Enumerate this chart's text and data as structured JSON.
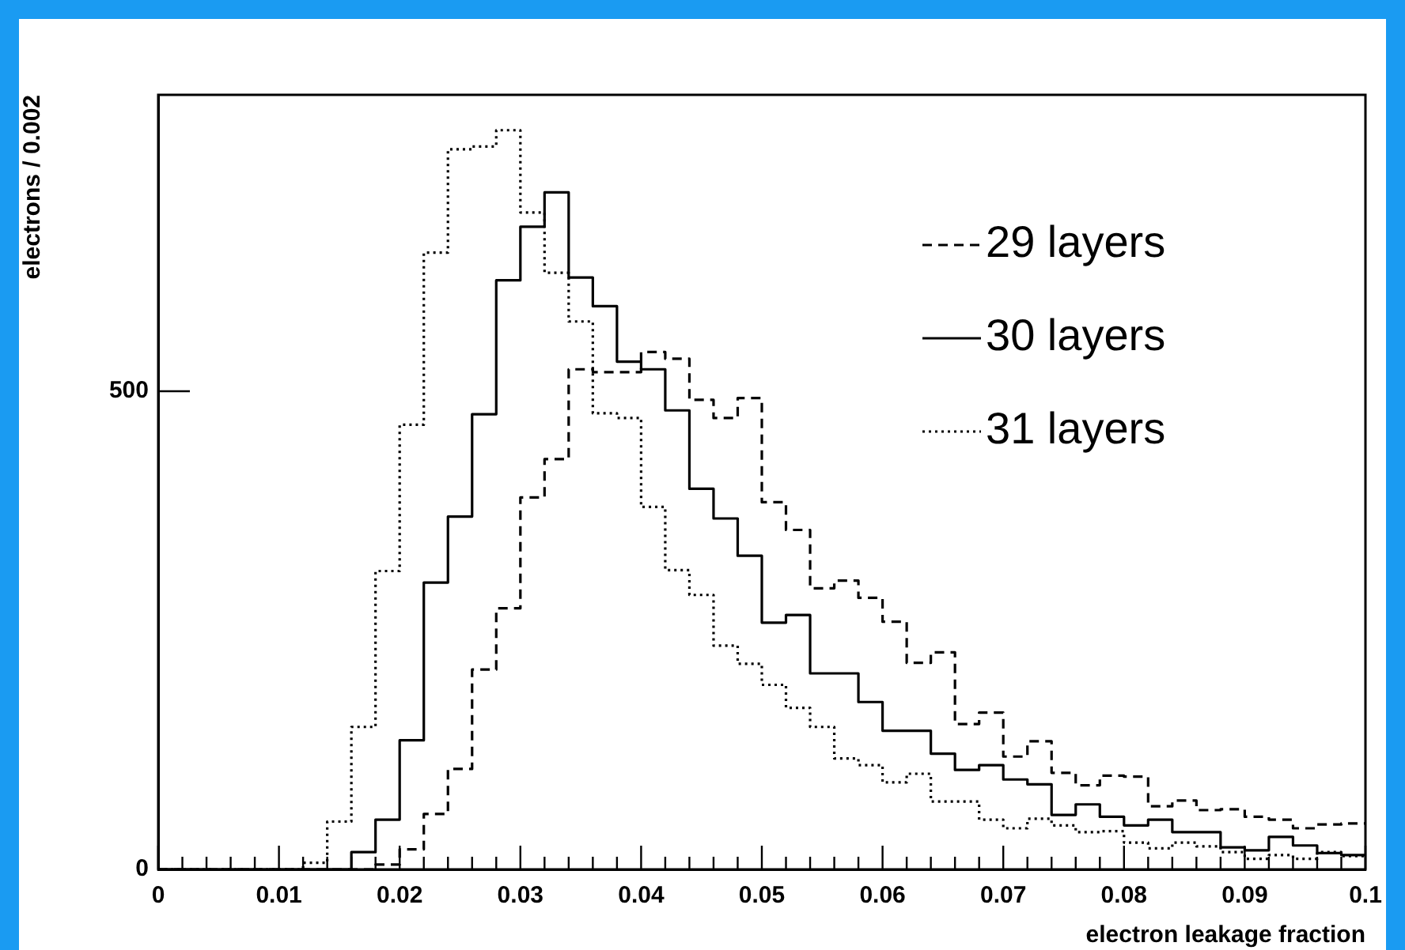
{
  "chart_data": {
    "type": "histogram",
    "xlabel": "electron leakage fraction",
    "ylabel": "electrons / 0.002",
    "bins": [
      0,
      0.002,
      0.004,
      0.006,
      0.008,
      0.01,
      0.012,
      0.014,
      0.016,
      0.018,
      0.02,
      0.022,
      0.024,
      0.026,
      0.028,
      0.03,
      0.032,
      0.034,
      0.036,
      0.038,
      0.04,
      0.042,
      0.044,
      0.046,
      0.048,
      0.05,
      0.052,
      0.054,
      0.056,
      0.058,
      0.06,
      0.062,
      0.064,
      0.066,
      0.068,
      0.07,
      0.072,
      0.074,
      0.076,
      0.078,
      0.08,
      0.082,
      0.084,
      0.086,
      0.088,
      0.09,
      0.092,
      0.094,
      0.096,
      0.098,
      0.1
    ],
    "series": [
      {
        "name": "29 layers",
        "color": "#000000",
        "line_style": "dashed",
        "values": [
          0,
          0,
          0,
          0,
          0,
          0,
          0,
          0,
          0,
          5,
          21,
          58,
          105,
          209,
          273,
          389,
          429,
          523,
          520,
          520,
          541,
          534,
          491,
          472,
          493,
          384,
          355,
          294,
          302,
          284,
          259,
          216,
          227,
          152,
          164,
          118,
          134,
          101,
          88,
          98,
          97,
          66,
          72,
          62,
          63,
          55,
          52,
          43,
          47,
          48
        ]
      },
      {
        "name": "30 layers",
        "color": "#000000",
        "line_style": "solid",
        "values": [
          0,
          0,
          0,
          0,
          0,
          0,
          0,
          0,
          18,
          52,
          135,
          300,
          369,
          476,
          616,
          672,
          708,
          619,
          589,
          531,
          523,
          480,
          398,
          367,
          328,
          258,
          266,
          205,
          205,
          175,
          145,
          145,
          121,
          104,
          109,
          94,
          89,
          57,
          68,
          55,
          46,
          52,
          39,
          39,
          23,
          20,
          34,
          25,
          17,
          15
        ]
      },
      {
        "name": "31 layers",
        "color": "#000000",
        "line_style": "dotted",
        "values": [
          0,
          0,
          0,
          0,
          0,
          0,
          7,
          50,
          149,
          312,
          465,
          645,
          753,
          756,
          773,
          687,
          624,
          573,
          477,
          472,
          379,
          313,
          287,
          234,
          215,
          193,
          169,
          149,
          116,
          109,
          91,
          100,
          71,
          71,
          52,
          43,
          53,
          46,
          39,
          40,
          28,
          22,
          28,
          24,
          18,
          11,
          15,
          11,
          18,
          14
        ]
      }
    ],
    "xlim": [
      0,
      0.1
    ],
    "ylim": [
      0,
      810
    ],
    "xticks": [
      0,
      {
        "value": 0.002,
        "label": null
      },
      {
        "value": 0.004,
        "label": null
      },
      {
        "value": 0.006,
        "label": null
      },
      {
        "value": 0.008,
        "label": null
      },
      0.01,
      {
        "value": 0.012,
        "label": null
      },
      {
        "value": 0.014,
        "label": null
      },
      {
        "value": 0.016,
        "label": null
      },
      {
        "value": 0.018,
        "label": null
      },
      0.02,
      {
        "value": 0.022,
        "label": null
      },
      {
        "value": 0.024,
        "label": null
      },
      {
        "value": 0.026,
        "label": null
      },
      {
        "value": 0.028,
        "label": null
      },
      0.03,
      {
        "value": 0.032,
        "label": null
      },
      {
        "value": 0.034,
        "label": null
      },
      {
        "value": 0.036,
        "label": null
      },
      {
        "value": 0.038,
        "label": null
      },
      0.04,
      {
        "value": 0.042,
        "label": null
      },
      {
        "value": 0.044,
        "label": null
      },
      {
        "value": 0.046,
        "label": null
      },
      {
        "value": 0.048,
        "label": null
      },
      0.05,
      {
        "value": 0.052,
        "label": null
      },
      {
        "value": 0.054,
        "label": null
      },
      {
        "value": 0.056,
        "label": null
      },
      {
        "value": 0.058,
        "label": null
      },
      0.06,
      {
        "value": 0.062,
        "label": null
      },
      {
        "value": 0.064,
        "label": null
      },
      {
        "value": 0.066,
        "label": null
      },
      {
        "value": 0.068,
        "label": null
      },
      0.07,
      {
        "value": 0.072,
        "label": null
      },
      {
        "value": 0.074,
        "label": null
      },
      {
        "value": 0.076,
        "label": null
      },
      {
        "value": 0.078,
        "label": null
      },
      0.08,
      {
        "value": 0.082,
        "label": null
      },
      {
        "value": 0.084,
        "label": null
      },
      {
        "value": 0.086,
        "label": null
      },
      {
        "value": 0.088,
        "label": null
      },
      0.09,
      {
        "value": 0.092,
        "label": null
      },
      {
        "value": 0.094,
        "label": null
      },
      {
        "value": 0.096,
        "label": null
      },
      {
        "value": 0.098,
        "label": null
      },
      0.1
    ],
    "yticks": [
      0,
      500
    ],
    "grid": false,
    "legend": "top right"
  }
}
